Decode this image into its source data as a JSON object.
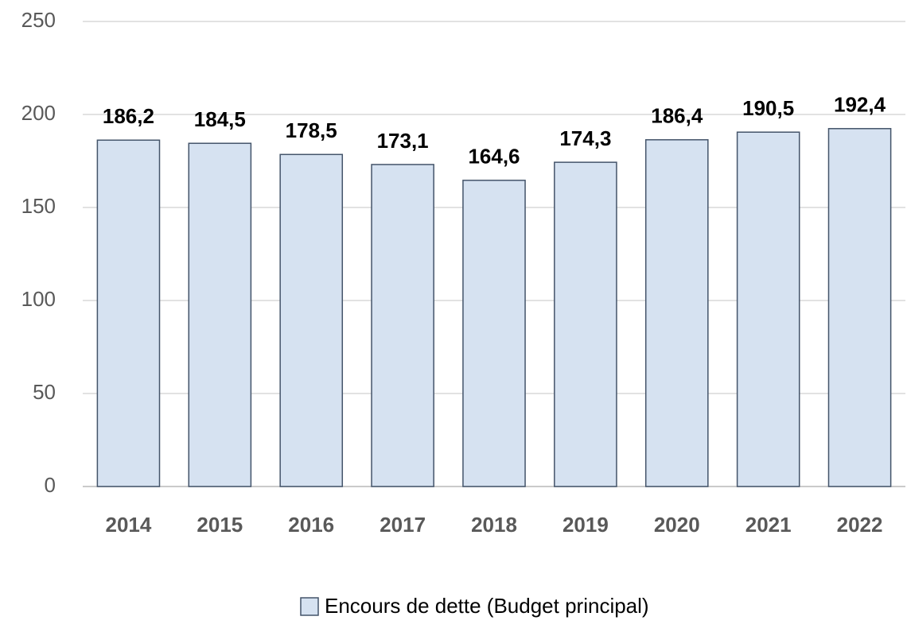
{
  "chart_data": {
    "type": "bar",
    "categories": [
      "2014",
      "2015",
      "2016",
      "2017",
      "2018",
      "2019",
      "2020",
      "2021",
      "2022"
    ],
    "series": [
      {
        "name": "Encours de dette (Budget principal)",
        "color": "#d6e2f1",
        "values": [
          186.2,
          184.5,
          178.5,
          173.1,
          164.6,
          174.3,
          186.4,
          190.5,
          192.4
        ],
        "value_labels": [
          "186,2",
          "184,5",
          "178,5",
          "173,1",
          "164,6",
          "174,3",
          "186,4",
          "190,5",
          "192,4"
        ]
      }
    ],
    "ylim": [
      0,
      250
    ],
    "yticks": [
      0,
      50,
      100,
      150,
      200,
      250
    ],
    "grid": true,
    "legend": "bottom"
  }
}
